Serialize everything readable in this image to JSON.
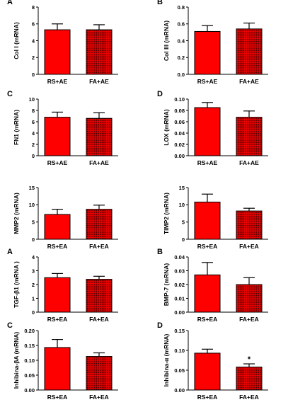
{
  "chart_data": [
    {
      "panel_letter": "A",
      "type": "bar",
      "ylabel": "Col I (mRNA)",
      "categories": [
        "RS+AE",
        "FA+AE"
      ],
      "values": [
        5.3,
        5.3
      ],
      "errors": [
        0.7,
        0.6
      ],
      "ylim": [
        0,
        8
      ],
      "yticks": [
        "0",
        "2",
        "4",
        "6",
        "8"
      ],
      "annotations": [
        "",
        ""
      ]
    },
    {
      "panel_letter": "B",
      "type": "bar",
      "ylabel": "Col III (mRNA)",
      "categories": [
        "RS+AE",
        "FA+AE"
      ],
      "values": [
        0.51,
        0.54
      ],
      "errors": [
        0.07,
        0.07
      ],
      "ylim": [
        0,
        0.8
      ],
      "yticks": [
        "0.0",
        "0.2",
        "0.4",
        "0.6",
        "0.8"
      ],
      "annotations": [
        "",
        ""
      ]
    },
    {
      "panel_letter": "C",
      "type": "bar",
      "ylabel": "FN1 (mRNA)",
      "categories": [
        "RS+AE",
        "FA+AE"
      ],
      "values": [
        6.8,
        6.6
      ],
      "errors": [
        0.9,
        1.0
      ],
      "ylim": [
        0,
        10
      ],
      "yticks": [
        "0",
        "2",
        "4",
        "6",
        "8",
        "10"
      ],
      "annotations": [
        "",
        ""
      ]
    },
    {
      "panel_letter": "D",
      "type": "bar",
      "ylabel": "LOX (mRNA)",
      "categories": [
        "RS+AE",
        "FA+AE"
      ],
      "values": [
        0.085,
        0.068
      ],
      "errors": [
        0.009,
        0.011
      ],
      "ylim": [
        0,
        0.1
      ],
      "yticks": [
        "0.00",
        "0.02",
        "0.04",
        "0.06",
        "0.08",
        "0.10"
      ],
      "annotations": [
        "",
        ""
      ]
    },
    {
      "panel_letter": "",
      "type": "bar",
      "ylabel": "MMP2 (mRNA)",
      "categories": [
        "RS+EA",
        "FA+EA"
      ],
      "values": [
        7.2,
        8.7
      ],
      "errors": [
        1.5,
        1.2
      ],
      "ylim": [
        0,
        15
      ],
      "yticks": [
        "0",
        "5",
        "10",
        "15"
      ],
      "annotations": [
        "",
        ""
      ]
    },
    {
      "panel_letter": "",
      "type": "bar",
      "ylabel": "TIMP2 (mRNA)",
      "categories": [
        "RS+EA",
        "FA+EA"
      ],
      "values": [
        10.8,
        8.2
      ],
      "errors": [
        2.3,
        0.8
      ],
      "ylim": [
        0,
        15
      ],
      "yticks": [
        "0",
        "5",
        "10",
        "15"
      ],
      "annotations": [
        "",
        ""
      ]
    },
    {
      "panel_letter": "A",
      "type": "bar",
      "ylabel": "TGF-β1 (mRNA )",
      "categories": [
        "RS+EA",
        "FA+EA"
      ],
      "values": [
        2.5,
        2.38
      ],
      "errors": [
        0.3,
        0.22
      ],
      "ylim": [
        0,
        4
      ],
      "yticks": [
        "0",
        "1",
        "2",
        "3",
        "4"
      ],
      "annotations": [
        "",
        ""
      ]
    },
    {
      "panel_letter": "B",
      "type": "bar",
      "ylabel": "BMP-7 (mRNA)",
      "categories": [
        "RS+EA",
        "FA+EA"
      ],
      "values": [
        0.027,
        0.02
      ],
      "errors": [
        0.009,
        0.005
      ],
      "ylim": [
        0,
        0.04
      ],
      "yticks": [
        "0.00",
        "0.01",
        "0.02",
        "0.03",
        "0.04"
      ],
      "annotations": [
        "",
        ""
      ]
    },
    {
      "panel_letter": "C",
      "type": "bar",
      "ylabel": "Inhibina-βA (mRNA)",
      "categories": [
        "RS+EA",
        "FA+EA"
      ],
      "values": [
        0.143,
        0.113
      ],
      "errors": [
        0.027,
        0.012
      ],
      "ylim": [
        0,
        0.2
      ],
      "yticks": [
        "0.00",
        "0.05",
        "0.10",
        "0.15",
        "0.20"
      ],
      "annotations": [
        "",
        ""
      ]
    },
    {
      "panel_letter": "D",
      "type": "bar",
      "ylabel": "Inhibina-α (mRNA)",
      "categories": [
        "RS+EA",
        "FA+EA"
      ],
      "values": [
        0.093,
        0.058
      ],
      "errors": [
        0.01,
        0.008
      ],
      "ylim": [
        0,
        0.15
      ],
      "yticks": [
        "0.00",
        "0.05",
        "0.10",
        "0.15"
      ],
      "annotations": [
        "",
        "*"
      ]
    }
  ],
  "colors": {
    "rs_bar": "#ff0000",
    "fa_bar_base": "#ee0000",
    "fa_bar_dots": "#1a0000",
    "axis": "#000000"
  }
}
